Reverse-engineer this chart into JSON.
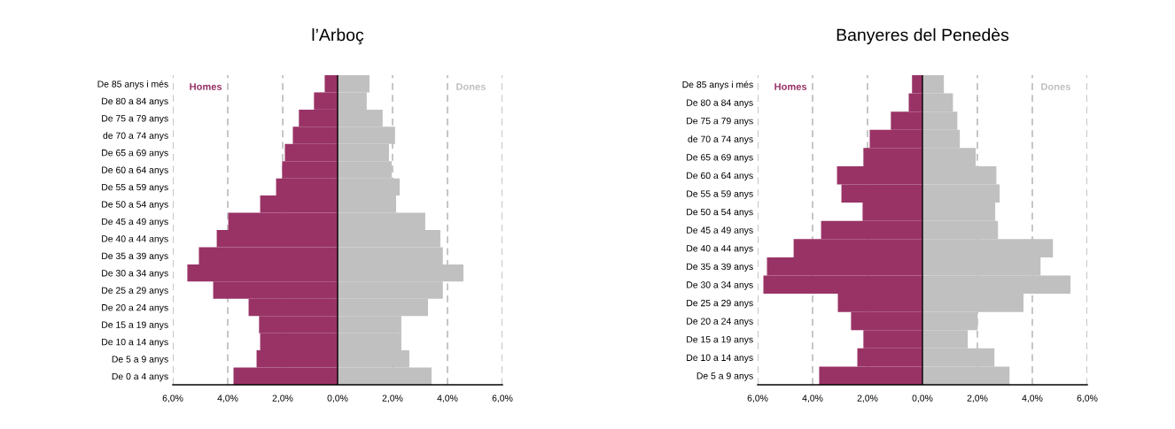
{
  "chart_data": [
    {
      "type": "bar",
      "orientation": "horizontal",
      "stacked": true,
      "title": "l’Arboç",
      "categories": [
        "De 85 anys i més",
        "De 80 a 84 anys",
        "De 75 a 79 anys",
        "de 70 a 74 anys",
        "De 65 a 69 anys",
        "De 60 a 64 anys",
        "De 55 a 59 anys",
        "De 50 a 54 anys",
        "De 45 a 49 anys",
        "De 40 a 44 anys",
        "De 35 a 39 anys",
        "De 30 a 34 anys",
        "De 25 a 29 anys",
        "De 20 a 24 anys",
        "De 15 a 19 anys",
        "De 10 a 14 anys",
        "De 5 a 9 anys",
        "De 0 a 4 anys"
      ],
      "series": [
        {
          "name": "Homes",
          "color": "#993366",
          "values": [
            -0.47,
            -0.86,
            -1.41,
            -1.63,
            -1.92,
            -2.02,
            -2.24,
            -2.82,
            -3.98,
            -4.4,
            -5.05,
            -5.47,
            -4.53,
            -3.24,
            -2.86,
            -2.82,
            -2.95,
            -3.79
          ]
        },
        {
          "name": "Dones",
          "color": "#c0c0c0",
          "values": [
            1.16,
            1.06,
            1.64,
            2.09,
            1.87,
            1.97,
            2.26,
            2.13,
            3.19,
            3.74,
            3.83,
            4.58,
            3.83,
            3.29,
            2.32,
            2.32,
            2.61,
            3.42
          ]
        }
      ],
      "xlim": [
        -6,
        6
      ],
      "xticks": [
        {
          "value": -6,
          "label": "6,0%"
        },
        {
          "value": -4,
          "label": "4,0%"
        },
        {
          "value": -2,
          "label": "2,0%"
        },
        {
          "value": 0,
          "label": "0,0%"
        },
        {
          "value": 2,
          "label": "2,0%"
        },
        {
          "value": 4,
          "label": "4,0%"
        },
        {
          "value": 6,
          "label": "6,0%"
        }
      ],
      "grid": "x",
      "ref_lines": [
        {
          "axis": "x",
          "value": 0,
          "color": "#000000",
          "line_style": "solid"
        }
      ]
    },
    {
      "type": "bar",
      "orientation": "horizontal",
      "stacked": true,
      "title": "Banyeres del Penedès",
      "categories": [
        "De 85 anys i més",
        "De 80 a 84 anys",
        "De 75 a 79 anys",
        "de 70 a 74 anys",
        "De 65 a 69 anys",
        "De 60 a 64 anys",
        "De 55 a 59 anys",
        "De 50 a 54 anys",
        "De 45 a 49 anys",
        "De 40 a 44 anys",
        "De 35 a 39 anys",
        "De 30 a 34 anys",
        "De 25 a 29 anys",
        "De 20 a 24 anys",
        "De 15 a 19 anys",
        "De 10 a 14 anys",
        "De 5 a 9 anys"
      ],
      "series": [
        {
          "name": "Homes",
          "color": "#993366",
          "values": [
            -0.38,
            -0.5,
            -1.15,
            -1.92,
            -2.15,
            -3.11,
            -2.95,
            -2.18,
            -3.69,
            -4.69,
            -5.66,
            -5.79,
            -3.08,
            -2.6,
            -2.15,
            -2.37,
            -3.76
          ]
        },
        {
          "name": "Dones",
          "color": "#c0c0c0",
          "values": [
            0.78,
            1.11,
            1.27,
            1.36,
            1.94,
            2.69,
            2.81,
            2.65,
            2.75,
            4.75,
            4.3,
            5.39,
            3.68,
            2.01,
            1.65,
            2.62,
            3.17
          ]
        }
      ],
      "xlim": [
        -6,
        6
      ],
      "xticks": [
        {
          "value": -6,
          "label": "6,0%"
        },
        {
          "value": -4,
          "label": "4,0%"
        },
        {
          "value": -2,
          "label": "2,0%"
        },
        {
          "value": 0,
          "label": "0,0%"
        },
        {
          "value": 2,
          "label": "2,0%"
        },
        {
          "value": 4,
          "label": "4,0%"
        },
        {
          "value": 6,
          "label": "6,0%"
        }
      ],
      "grid": "x",
      "ref_lines": [
        {
          "axis": "x",
          "value": 0,
          "color": "#000000",
          "line_style": "solid"
        }
      ]
    }
  ]
}
